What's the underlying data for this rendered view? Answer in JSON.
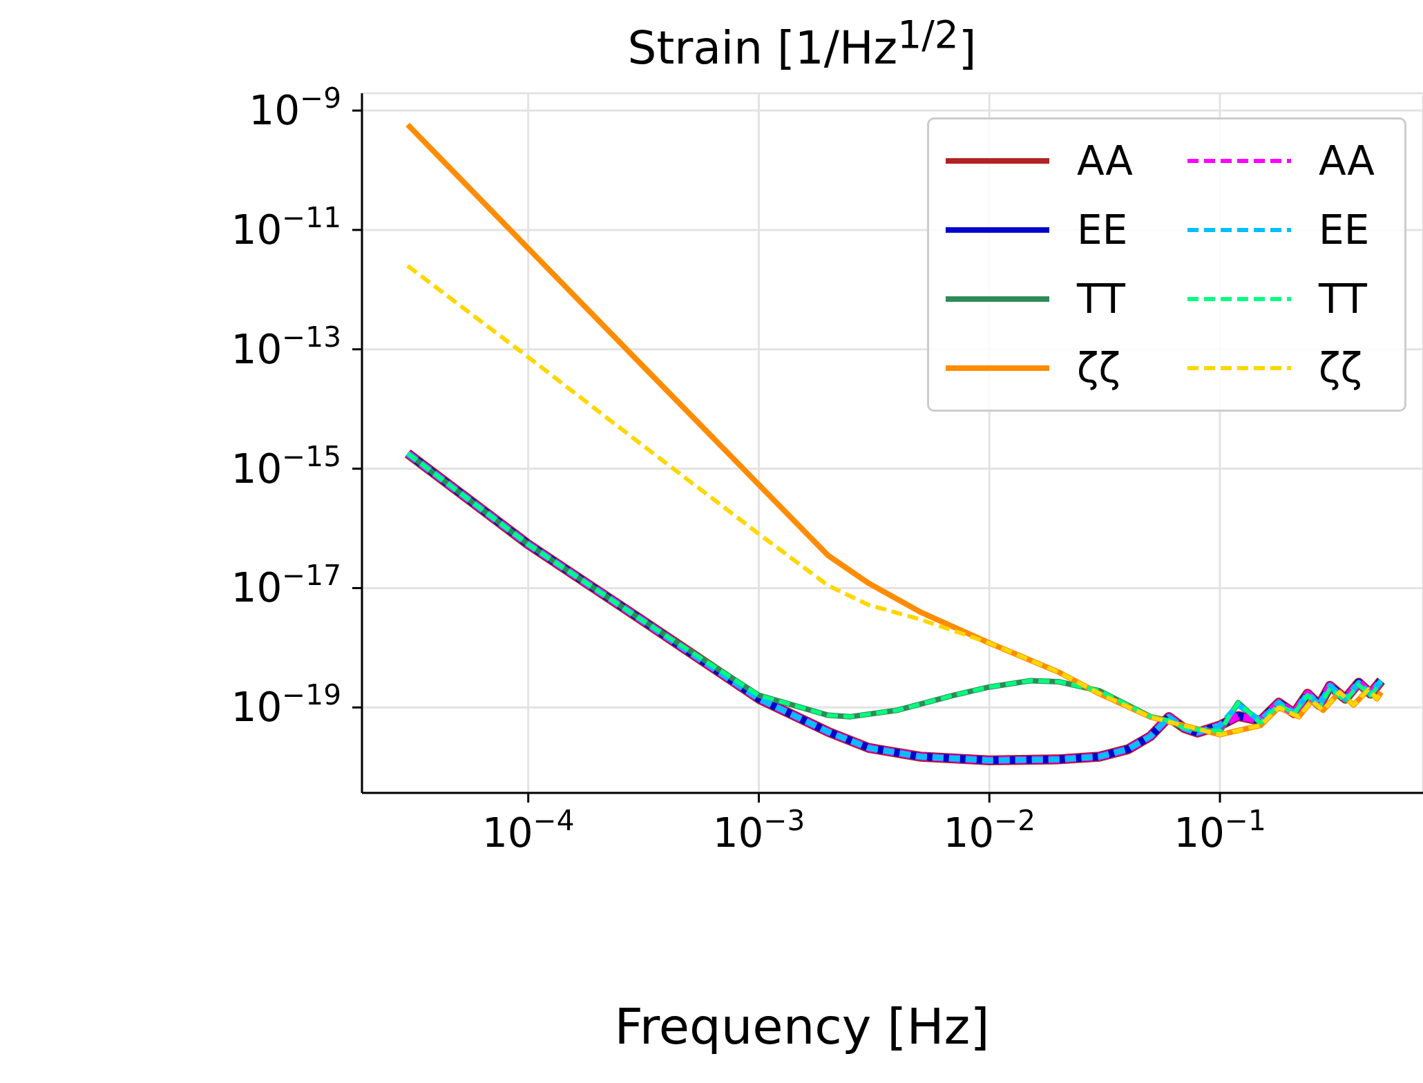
{
  "chart_data": {
    "type": "line",
    "title": "Strain [1/Hz$^{1/2}$]",
    "xlabel": "Frequency [Hz]",
    "log": "xy",
    "grid": true,
    "legend": "top right",
    "xlim": [
      1.9e-05,
      0.76
    ],
    "ylim": [
      3.7e-21,
      1.95e-09
    ],
    "xticks": [
      {
        "value": 0.0001,
        "label": "10$^{−4}$"
      },
      {
        "value": 0.001,
        "label": "10$^{−3}$"
      },
      {
        "value": 0.01,
        "label": "10$^{−2}$"
      },
      {
        "value": 0.1,
        "label": "10$^{−1}$"
      }
    ],
    "yticks": [
      {
        "value": 1e-19,
        "label": "10$^{−19}$"
      },
      {
        "value": 1e-17,
        "label": "10$^{−17}$"
      },
      {
        "value": 1e-15,
        "label": "10$^{−15}$"
      },
      {
        "value": 1e-13,
        "label": "10$^{−13}$"
      },
      {
        "value": 1e-11,
        "label": "10$^{−11}$"
      },
      {
        "value": 1e-09,
        "label": "10$^{−9}$"
      }
    ],
    "series": [
      {
        "name": "AA",
        "color": "#b22222",
        "line_style": "solid",
        "x": [
          3e-05,
          0.0001,
          0.0003,
          0.001,
          0.002,
          0.003,
          0.005,
          0.01,
          0.02,
          0.03,
          0.04,
          0.05,
          0.06,
          0.07,
          0.08,
          0.1,
          0.12,
          0.15,
          0.18,
          0.21,
          0.24,
          0.27,
          0.3,
          0.35,
          0.4,
          0.45,
          0.5
        ],
        "values": [
          1.8e-15,
          5.4e-17,
          3.2e-18,
          1.4e-19,
          3.9e-20,
          2.1e-20,
          1.5e-20,
          1.3e-20,
          1.35e-20,
          1.5e-20,
          2e-20,
          3.3e-20,
          6.9e-20,
          4.5e-20,
          3.8e-20,
          5e-20,
          7.2e-20,
          6e-20,
          1.2e-19,
          8e-20,
          1.7e-19,
          1.1e-19,
          2.3e-19,
          1.4e-19,
          2.6e-19,
          1.7e-19,
          2.8e-19
        ]
      },
      {
        "name": "EE",
        "color": "#0000cd",
        "line_style": "solid",
        "x": [
          3e-05,
          0.0001,
          0.0003,
          0.001,
          0.002,
          0.003,
          0.005,
          0.01,
          0.02,
          0.03,
          0.04,
          0.05,
          0.06,
          0.07,
          0.08,
          0.1,
          0.12,
          0.15,
          0.18,
          0.21,
          0.24,
          0.27,
          0.3,
          0.35,
          0.4,
          0.45,
          0.5
        ],
        "values": [
          1.8e-15,
          5.4e-17,
          3.2e-18,
          1.4e-19,
          3.9e-20,
          2.1e-20,
          1.5e-20,
          1.3e-20,
          1.35e-20,
          1.5e-20,
          2e-20,
          3.3e-20,
          6.9e-20,
          4.5e-20,
          3.8e-20,
          5e-20,
          7.2e-20,
          6e-20,
          1.2e-19,
          8e-20,
          1.7e-19,
          1.1e-19,
          2.3e-19,
          1.4e-19,
          2.6e-19,
          1.7e-19,
          2.8e-19
        ]
      },
      {
        "name": "TT",
        "color": "#2e8b57",
        "line_style": "solid",
        "x": [
          3e-05,
          0.0001,
          0.0003,
          0.001,
          0.002,
          0.0025,
          0.004,
          0.007,
          0.01,
          0.015,
          0.02,
          0.03,
          0.05,
          0.06,
          0.07,
          0.1,
          0.12,
          0.15,
          0.18,
          0.21,
          0.24,
          0.27,
          0.3,
          0.35,
          0.4,
          0.45,
          0.5
        ],
        "values": [
          1.8e-15,
          5.4e-17,
          3.2e-18,
          1.6e-19,
          7.4e-20,
          7e-20,
          9e-20,
          1.6e-19,
          2.2e-19,
          2.8e-19,
          2.7e-19,
          1.9e-19,
          7e-20,
          6e-20,
          4.5e-20,
          4e-20,
          1.2e-19,
          5.5e-20,
          1.1e-19,
          8e-20,
          1.6e-19,
          1e-19,
          2.1e-19,
          1.3e-19,
          2.4e-19,
          1.6e-19,
          2.6e-19
        ]
      },
      {
        "name": "ζζ",
        "color": "#ff8c00",
        "line_style": "solid",
        "x": [
          3e-05,
          0.0001,
          0.0003,
          0.001,
          0.002,
          0.003,
          0.005,
          0.01,
          0.02,
          0.03,
          0.05,
          0.1,
          0.15,
          0.18,
          0.22,
          0.25,
          0.28,
          0.33,
          0.38,
          0.44,
          0.48,
          0.5
        ],
        "values": [
          5.8e-10,
          4.9e-12,
          6.3e-14,
          5.4e-16,
          3.5e-17,
          1.2e-17,
          4e-18,
          1.2e-18,
          3.9e-19,
          1.7e-19,
          6.9e-20,
          3.5e-20,
          5e-20,
          1e-19,
          7e-20,
          1.3e-19,
          9e-20,
          1.8e-19,
          1.1e-19,
          2e-19,
          1.4e-19,
          1.8e-19
        ]
      },
      {
        "name": "AA",
        "color": "#ff00ff",
        "line_style": "dashed",
        "x": [
          3e-05,
          0.0001,
          0.0003,
          0.001,
          0.002,
          0.003,
          0.005,
          0.01,
          0.02,
          0.03,
          0.04,
          0.05,
          0.06,
          0.07,
          0.08,
          0.1,
          0.12,
          0.15,
          0.18,
          0.21,
          0.24,
          0.27,
          0.3,
          0.35,
          0.4,
          0.45,
          0.5
        ],
        "values": [
          1.8e-15,
          5.4e-17,
          3.2e-18,
          1.4e-19,
          3.9e-20,
          2.1e-20,
          1.5e-20,
          1.3e-20,
          1.35e-20,
          1.5e-20,
          2e-20,
          3.3e-20,
          6.9e-20,
          4.5e-20,
          3.8e-20,
          5e-20,
          7.2e-20,
          6e-20,
          1.2e-19,
          8e-20,
          1.7e-19,
          1.1e-19,
          2.3e-19,
          1.4e-19,
          2.6e-19,
          1.7e-19,
          2.8e-19
        ]
      },
      {
        "name": "EE",
        "color": "#00bfff",
        "line_style": "dashed",
        "x": [
          3e-05,
          0.0001,
          0.0003,
          0.001,
          0.002,
          0.003,
          0.005,
          0.01,
          0.02,
          0.03,
          0.04,
          0.05,
          0.06,
          0.07,
          0.08,
          0.1,
          0.12,
          0.15,
          0.18,
          0.21,
          0.24,
          0.27,
          0.3,
          0.35,
          0.4,
          0.45,
          0.5
        ],
        "values": [
          1.8e-15,
          5.4e-17,
          3.2e-18,
          1.4e-19,
          3.9e-20,
          2.1e-20,
          1.5e-20,
          1.3e-20,
          1.35e-20,
          1.5e-20,
          2e-20,
          3.3e-20,
          6.9e-20,
          4.5e-20,
          3.8e-20,
          5e-20,
          1.1e-19,
          6e-20,
          1.2e-19,
          8e-20,
          1.7e-19,
          1.1e-19,
          2.3e-19,
          1.4e-19,
          2.6e-19,
          1.7e-19,
          2.8e-19
        ]
      },
      {
        "name": "TT",
        "color": "#00ff7f",
        "line_style": "dashed",
        "x": [
          3e-05,
          0.0001,
          0.0003,
          0.001,
          0.002,
          0.0025,
          0.004,
          0.007,
          0.01,
          0.015,
          0.02,
          0.03,
          0.05,
          0.06,
          0.07,
          0.1,
          0.12,
          0.15,
          0.18,
          0.21,
          0.24,
          0.27,
          0.3,
          0.35,
          0.4,
          0.45,
          0.5
        ],
        "values": [
          1.8e-15,
          5.4e-17,
          3.2e-18,
          1.6e-19,
          7.4e-20,
          7e-20,
          9e-20,
          1.6e-19,
          2.2e-19,
          2.8e-19,
          2.7e-19,
          1.9e-19,
          7e-20,
          6e-20,
          4.5e-20,
          4e-20,
          1.2e-19,
          5.5e-20,
          1.1e-19,
          8e-20,
          1.6e-19,
          1e-19,
          2.1e-19,
          1.3e-19,
          2.4e-19,
          1.6e-19,
          2.6e-19
        ]
      },
      {
        "name": "ζζ",
        "color": "#ffd700",
        "line_style": "dashed",
        "x": [
          3e-05,
          0.0001,
          0.0003,
          0.001,
          0.002,
          0.003,
          0.005,
          0.01,
          0.02,
          0.03,
          0.05,
          0.1,
          0.15,
          0.18,
          0.22,
          0.25,
          0.28,
          0.33,
          0.38,
          0.44,
          0.48,
          0.5
        ],
        "values": [
          2.5e-12,
          7.4e-14,
          2.8e-15,
          8.1e-17,
          1.1e-17,
          5.2e-18,
          3e-18,
          1.2e-18,
          3.9e-19,
          1.7e-19,
          6.9e-20,
          3.5e-20,
          5e-20,
          1e-19,
          7e-20,
          1.3e-19,
          9e-20,
          1.8e-19,
          1.1e-19,
          2e-19,
          1.4e-19,
          1.8e-19
        ]
      }
    ]
  }
}
